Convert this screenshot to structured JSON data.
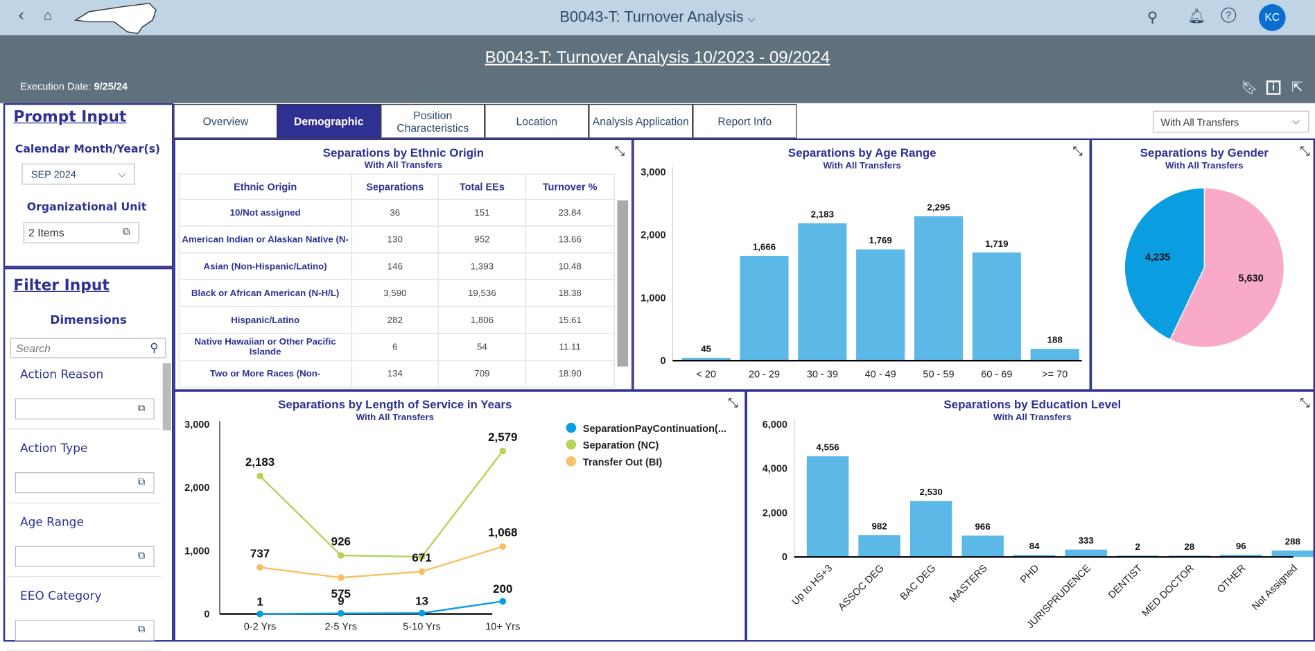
{
  "topbar": {
    "app_title": "B0043-T: Turnover Analysis",
    "avatar": "KC"
  },
  "header": {
    "report_title": "B0043-T: Turnover Analysis 10/2023 - 09/2024",
    "execution_label": "Execution Date:",
    "execution_date": "9/25/24"
  },
  "prompt": {
    "title": "Prompt Input",
    "month_label": "Calendar Month/Year(s)",
    "month_value": "SEP 2024",
    "org_label": "Organizational Unit",
    "org_value": "2 Items"
  },
  "filter": {
    "title": "Filter Input",
    "dimensions_label": "Dimensions",
    "search_placeholder": "Search",
    "dimensions": [
      "Action Reason",
      "Action Type",
      "Age Range",
      "EEO Category"
    ]
  },
  "tabs": [
    "Overview",
    "Demographic",
    "Position Characteristics",
    "Location",
    "Analysis Application",
    "Report Info"
  ],
  "transfer_select": "With All Transfers",
  "colors": {
    "bar": "#5cb8e6",
    "blue": "#0a9ee0",
    "pink": "#f9aac8",
    "green": "#b5d457",
    "orange": "#f7c064",
    "navy": "#2e3192"
  },
  "ethnic": {
    "title": "Separations by Ethnic Origin",
    "subtitle": "With All Transfers",
    "columns": [
      "Ethnic Origin",
      "Separations",
      "Total EEs",
      "Turnover %"
    ],
    "rows": [
      [
        "10/Not assigned",
        "36",
        "151",
        "23.84"
      ],
      [
        "American Indian or Alaskan Native (N-",
        "130",
        "952",
        "13.66"
      ],
      [
        "Asian (Non-Hispanic/Latino)",
        "146",
        "1,393",
        "10.48"
      ],
      [
        "Black or African American (N-H/L)",
        "3,590",
        "19,536",
        "18.38"
      ],
      [
        "Hispanic/Latino",
        "282",
        "1,806",
        "15.61"
      ],
      [
        "Native Hawaiian or Other Pacific Islande",
        "6",
        "54",
        "11.11"
      ],
      [
        "Two or More Races (Non-",
        "134",
        "709",
        "18.90"
      ]
    ]
  },
  "chart_data": [
    {
      "type": "bar",
      "title": "Separations by Age Range",
      "subtitle": "With All Transfers",
      "categories": [
        "< 20",
        "20 - 29",
        "30 - 39",
        "40 - 49",
        "50 - 59",
        "60 - 69",
        ">= 70"
      ],
      "values": [
        45,
        1666,
        2183,
        1769,
        2295,
        1719,
        188
      ],
      "labels": [
        "45",
        "1,666",
        "2,183",
        "1,769",
        "2,295",
        "1,719",
        "188"
      ],
      "ylim": [
        0,
        3000
      ],
      "yticks": [
        "0",
        "1,000",
        "2,000",
        "3,000"
      ]
    },
    {
      "type": "pie",
      "title": "Separations by Gender",
      "subtitle": "With All Transfers",
      "values": [
        5630,
        4235
      ],
      "labels": [
        "5,630",
        "4,235"
      ]
    },
    {
      "type": "line",
      "title": "Separations by Length of Service in Years",
      "subtitle": "With All Transfers",
      "categories": [
        "0-2 Yrs",
        "2-5 Yrs",
        "5-10 Yrs",
        "10+ Yrs"
      ],
      "ylim": [
        0,
        3000
      ],
      "yticks": [
        "0",
        "1,000",
        "2,000",
        "3,000"
      ],
      "legend": "right",
      "series": [
        {
          "name": "SeparationPayContinuation(...",
          "values": [
            1,
            9,
            13,
            200
          ],
          "labels": [
            "1",
            "9",
            "13",
            "200"
          ]
        },
        {
          "name": "Separation (NC)",
          "values": [
            2183,
            926,
            905,
            2579
          ],
          "labels": [
            "2,183",
            "926",
            "",
            "2,579"
          ]
        },
        {
          "name": "Transfer Out (BI)",
          "values": [
            737,
            575,
            671,
            1068
          ],
          "labels": [
            "737",
            "575",
            "671",
            "1,068"
          ]
        }
      ]
    },
    {
      "type": "bar",
      "title": "Separations by Education Level",
      "subtitle": "With All Transfers",
      "categories": [
        "Up to HS+3",
        "ASSOC DEG",
        "BAC DEG",
        "MASTERS",
        "PHD",
        "JURISPRUDENCE",
        "DENTIST",
        "MED DOCTOR",
        "OTHER",
        "Not Assigned"
      ],
      "values": [
        4556,
        982,
        2530,
        966,
        84,
        333,
        2,
        28,
        96,
        288
      ],
      "labels": [
        "4,556",
        "982",
        "2,530",
        "966",
        "84",
        "333",
        "2",
        "28",
        "96",
        "288"
      ],
      "ylim": [
        0,
        6000
      ],
      "yticks": [
        "0",
        "2,000",
        "4,000",
        "6,000"
      ]
    }
  ]
}
